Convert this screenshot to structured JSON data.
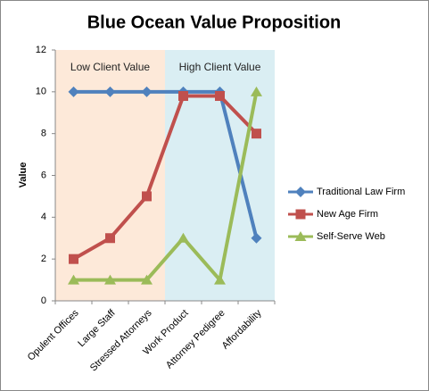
{
  "chart_data": {
    "type": "line",
    "title": "Blue Ocean Value Proposition",
    "y_label": "Value",
    "categories": [
      "Opulent Offices",
      "Large Staff",
      "Stressed Attorneys",
      "Work Product",
      "Attorney Pedigree",
      "Affordability"
    ],
    "series": [
      {
        "name": "Traditional Law Firm",
        "color": "#4f81bd",
        "marker": "diamond",
        "values": [
          10,
          10,
          10,
          10,
          10,
          3
        ]
      },
      {
        "name": "New Age Firm",
        "color": "#c0504d",
        "marker": "square",
        "values": [
          2,
          3,
          5,
          9.8,
          9.8,
          8
        ]
      },
      {
        "name": "Self-Serve Web",
        "color": "#9bbb59",
        "marker": "triangle",
        "values": [
          1,
          1,
          1,
          3,
          1,
          10
        ]
      }
    ],
    "regions": [
      {
        "label": "Low Client Value",
        "start": "Opulent Offices",
        "end": "Stressed Attorneys",
        "color": "#fde9d9"
      },
      {
        "label": "High Client Value",
        "start": "Work Product",
        "end": "Affordability",
        "color": "#daeef3"
      }
    ],
    "ylim": [
      0,
      12
    ],
    "yticks": [
      0,
      2,
      4,
      6,
      8,
      10,
      12
    ],
    "legend": "right"
  }
}
